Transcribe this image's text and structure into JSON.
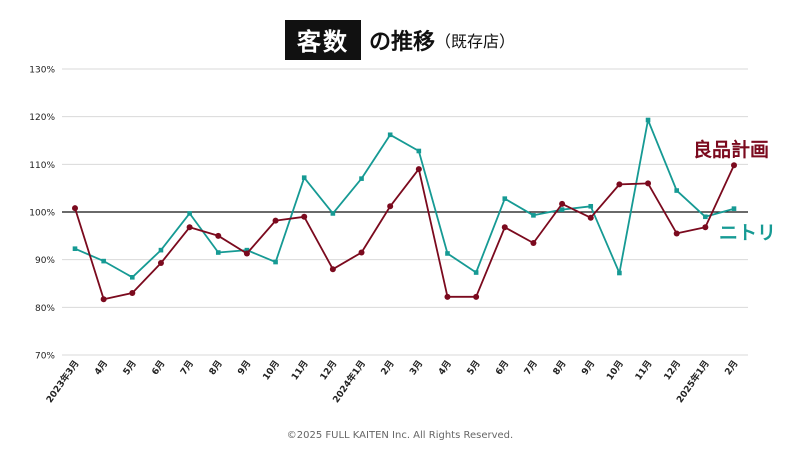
{
  "title": {
    "box": "客数",
    "main": "の推移",
    "sub": "（既存店）"
  },
  "footer": "©2025 FULL KAITEN Inc. All Rights Reserved.",
  "colors": {
    "ryohin": "#7b0a1e",
    "nitori": "#169a94",
    "baseline": "#111111",
    "grid": "#d9d9d9"
  },
  "chart_data": {
    "type": "line",
    "title": "客数の推移（既存店）",
    "categories": [
      "2023年3月",
      "4月",
      "5月",
      "6月",
      "7月",
      "8月",
      "9月",
      "10月",
      "11月",
      "12月",
      "2024年1月",
      "2月",
      "3月",
      "4月",
      "5月",
      "6月",
      "7月",
      "8月",
      "9月",
      "10月",
      "11月",
      "12月",
      "2025年1月",
      "2月"
    ],
    "yticks": [
      "70%",
      "80%",
      "90%",
      "100%",
      "110%",
      "120%",
      "130%"
    ],
    "ylim": [
      70,
      130
    ],
    "reference_line": 100,
    "grid": true,
    "series": [
      {
        "name": "良品計画",
        "color": "#7b0a1e",
        "values": [
          100.8,
          81.7,
          83.0,
          89.3,
          96.8,
          95.0,
          91.3,
          98.2,
          99.0,
          88.0,
          91.5,
          101.2,
          109.0,
          82.2,
          82.2,
          96.8,
          93.5,
          101.7,
          98.8,
          105.8,
          106.0,
          95.5,
          96.8,
          109.8
        ]
      },
      {
        "name": "ニトリ",
        "color": "#169a94",
        "values": [
          92.3,
          89.7,
          86.3,
          92.0,
          99.7,
          91.5,
          92.0,
          89.5,
          107.2,
          99.7,
          107.0,
          116.2,
          112.8,
          91.3,
          87.3,
          102.8,
          99.3,
          100.5,
          101.2,
          87.2,
          119.3,
          104.5,
          99.0,
          100.7
        ]
      }
    ]
  }
}
